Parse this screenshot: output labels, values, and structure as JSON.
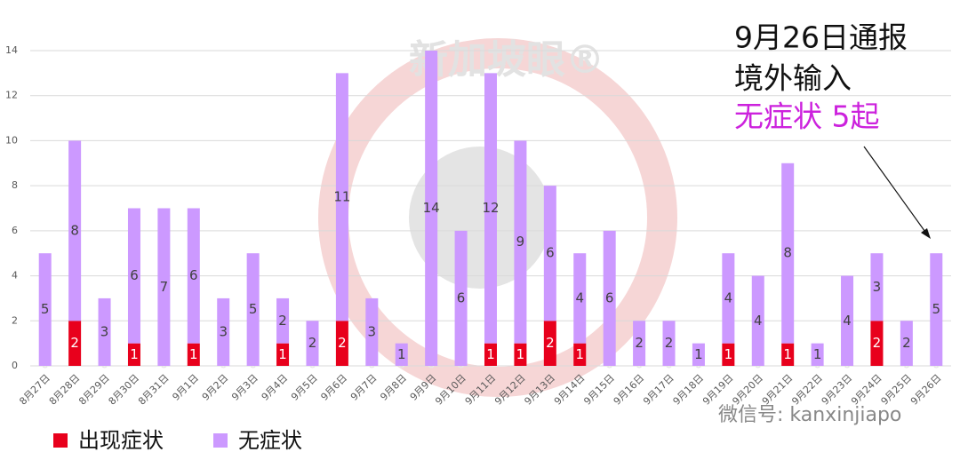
{
  "chart_data": {
    "type": "bar",
    "stacked": true,
    "categories": [
      "8月27日",
      "8月28日",
      "8月29日",
      "8月30日",
      "8月31日",
      "9月1日",
      "9月2日",
      "9月3日",
      "9月4日",
      "9月5日",
      "9月6日",
      "9月7日",
      "9月8日",
      "9月9日",
      "9月10日",
      "9月11日",
      "9月12日",
      "9月13日",
      "9月14日",
      "9月15日",
      "9月16日",
      "9月17日",
      "9月18日",
      "9月19日",
      "9月20日",
      "9月21日",
      "9月22日",
      "9月23日",
      "9月24日",
      "9月25日",
      "9月26日"
    ],
    "series": [
      {
        "name": "出现症状",
        "color": "#e8001c",
        "values": [
          0,
          2,
          0,
          1,
          0,
          1,
          0,
          0,
          1,
          0,
          2,
          0,
          0,
          0,
          0,
          1,
          1,
          2,
          1,
          0,
          0,
          0,
          0,
          1,
          0,
          1,
          0,
          0,
          2,
          0,
          0
        ]
      },
      {
        "name": "无症状",
        "color": "#cc99ff",
        "values": [
          5,
          8,
          3,
          6,
          7,
          6,
          3,
          5,
          2,
          2,
          11,
          3,
          1,
          14,
          6,
          12,
          9,
          6,
          4,
          6,
          2,
          2,
          1,
          4,
          4,
          8,
          1,
          4,
          3,
          2,
          5
        ]
      }
    ],
    "ylim": [
      0,
      14
    ],
    "yticks": [
      0,
      2,
      4,
      6,
      8,
      10,
      12,
      14
    ],
    "grid": true,
    "annotations": [
      "9月26日通报",
      "境外输入",
      "无症状 5起"
    ],
    "watermark": "新加坡眼®",
    "wechat_id": "微信号: kanxinjiapo"
  }
}
